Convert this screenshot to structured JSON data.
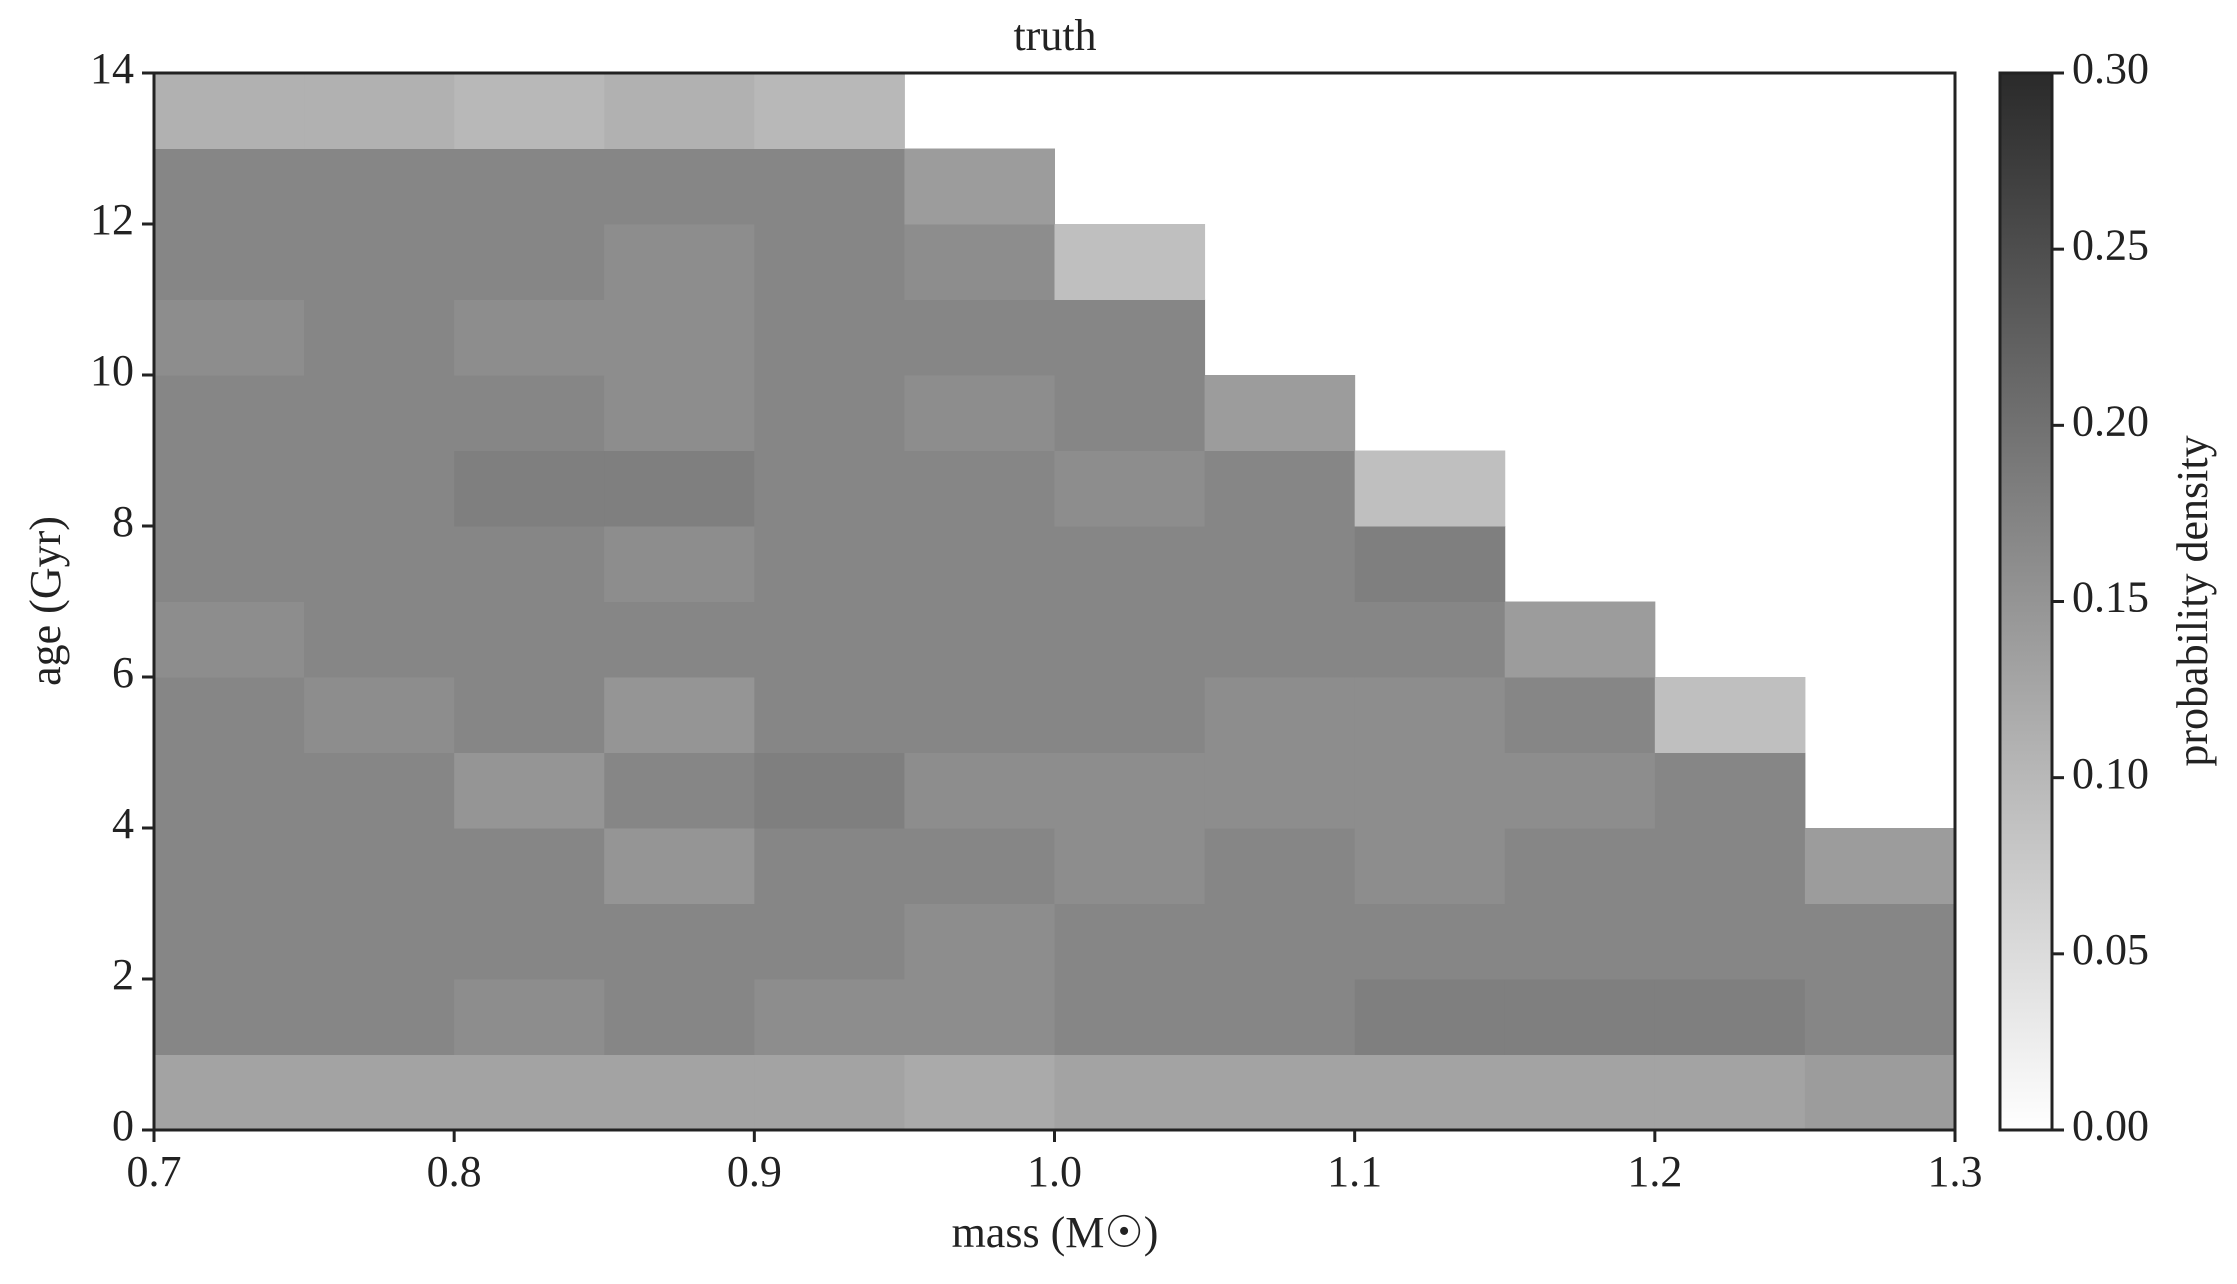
{
  "chart_data": {
    "type": "heatmap",
    "title": "truth",
    "xlabel": "mass (M☉)",
    "ylabel": "age (Gyr)",
    "colorbar_label": "probability density",
    "xbins": [
      0.7,
      0.75,
      0.8,
      0.85,
      0.9,
      0.95,
      1.0,
      1.05,
      1.1,
      1.15,
      1.2,
      1.25,
      1.3
    ],
    "ybins": [
      0,
      1,
      2,
      3,
      4,
      5,
      6,
      7,
      8,
      9,
      10,
      11,
      12,
      13,
      14
    ],
    "z": [
      [
        0.13,
        0.13,
        0.13,
        0.13,
        0.13,
        0.12,
        0.13,
        0.13,
        0.13,
        0.13,
        0.13,
        0.14
      ],
      [
        0.17,
        0.17,
        0.16,
        0.17,
        0.16,
        0.16,
        0.17,
        0.17,
        0.18,
        0.18,
        0.18,
        0.17
      ],
      [
        0.17,
        0.17,
        0.17,
        0.17,
        0.17,
        0.16,
        0.17,
        0.17,
        0.17,
        0.17,
        0.17,
        0.17
      ],
      [
        0.17,
        0.17,
        0.17,
        0.15,
        0.17,
        0.17,
        0.16,
        0.17,
        0.16,
        0.17,
        0.17,
        0.14
      ],
      [
        0.17,
        0.17,
        0.15,
        0.17,
        0.18,
        0.16,
        0.16,
        0.16,
        0.16,
        0.16,
        0.17,
        null
      ],
      [
        0.17,
        0.16,
        0.17,
        0.15,
        0.17,
        0.17,
        0.17,
        0.16,
        0.16,
        0.17,
        0.09,
        null
      ],
      [
        0.16,
        0.17,
        0.17,
        0.17,
        0.17,
        0.17,
        0.17,
        0.17,
        0.17,
        0.14,
        null,
        null
      ],
      [
        0.17,
        0.17,
        0.17,
        0.16,
        0.17,
        0.17,
        0.17,
        0.17,
        0.18,
        null,
        null,
        null
      ],
      [
        0.17,
        0.17,
        0.18,
        0.18,
        0.17,
        0.17,
        0.16,
        0.17,
        0.09,
        null,
        null,
        null
      ],
      [
        0.17,
        0.17,
        0.17,
        0.16,
        0.17,
        0.16,
        0.17,
        0.14,
        null,
        null,
        null,
        null
      ],
      [
        0.16,
        0.17,
        0.16,
        0.16,
        0.17,
        0.17,
        0.17,
        null,
        null,
        null,
        null,
        null
      ],
      [
        0.17,
        0.17,
        0.17,
        0.16,
        0.17,
        0.16,
        0.09,
        null,
        null,
        null,
        null,
        null
      ],
      [
        0.17,
        0.17,
        0.17,
        0.17,
        0.17,
        0.14,
        null,
        null,
        null,
        null,
        null,
        null
      ],
      [
        0.11,
        0.11,
        0.1,
        0.11,
        0.1,
        null,
        null,
        null,
        null,
        null,
        null,
        null
      ]
    ],
    "xlim": [
      0.7,
      1.3
    ],
    "xticks": [
      0.7,
      0.8,
      0.9,
      {
        "value": 1.0,
        "label": "1.0"
      },
      1.1,
      1.2,
      1.3
    ],
    "ylim": [
      0,
      14
    ],
    "yticks": [
      0,
      2,
      4,
      6,
      8,
      10,
      12,
      14
    ],
    "clim": [
      0,
      0.3
    ],
    "cticks": [
      {
        "value": 0,
        "label": "0.00"
      },
      {
        "value": 0.05,
        "label": "0.05"
      },
      {
        "value": 0.1,
        "label": "0.10"
      },
      {
        "value": 0.15,
        "label": "0.15"
      },
      {
        "value": 0.2,
        "label": "0.20"
      },
      {
        "value": 0.25,
        "label": "0.25"
      },
      {
        "value": 0.3,
        "label": "0.30"
      }
    ],
    "colormap": [
      "#ffffff",
      "#2a2a2a"
    ]
  }
}
